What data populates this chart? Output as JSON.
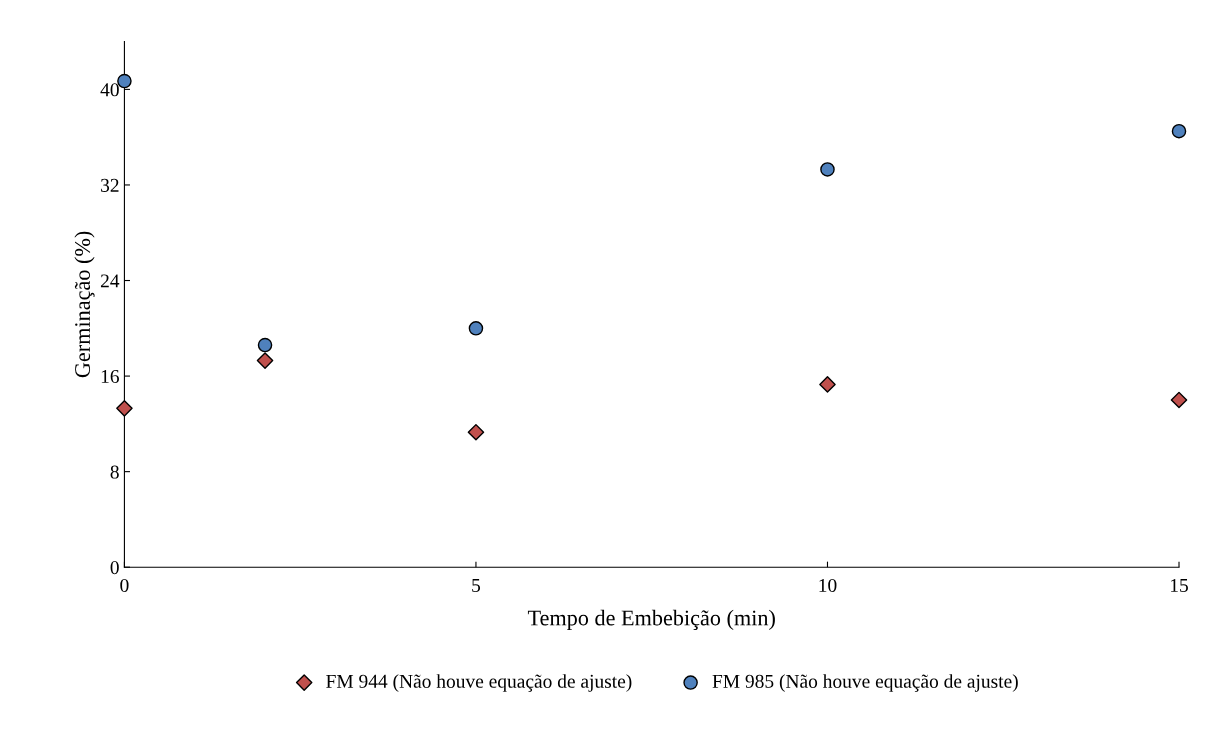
{
  "chart_data": {
    "type": "scatter",
    "xlabel": "Tempo de Embebição (min)",
    "ylabel": "Germinação (%)",
    "x": [
      0,
      2,
      5,
      10,
      15
    ],
    "series": [
      {
        "name": "FM 944 (Não houve equação de ajuste)",
        "color": "#c0504d",
        "marker": "diamond",
        "values": [
          13.3,
          17.3,
          11.3,
          15.3,
          14.0
        ]
      },
      {
        "name": "FM 985 (Não houve equação de ajuste)",
        "color": "#4f81bd",
        "marker": "circle",
        "values": [
          40.7,
          18.6,
          20.0,
          33.3,
          36.5
        ]
      }
    ],
    "xlim": [
      0,
      15
    ],
    "xticks": [
      0,
      5,
      10,
      15
    ],
    "ylim": [
      0,
      44
    ],
    "yticks": [
      0,
      8,
      16,
      24,
      32,
      40
    ],
    "grid": false,
    "legend": "bottom"
  }
}
